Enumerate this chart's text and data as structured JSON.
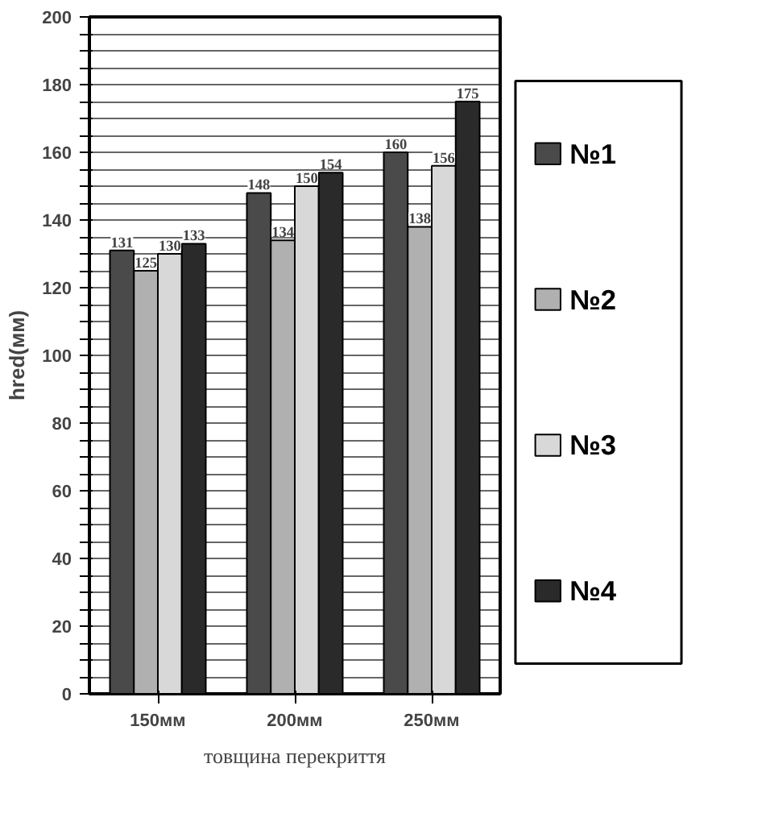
{
  "chart_data": {
    "type": "bar",
    "xlabel": "товщина перекриття",
    "ylabel": "hred(мм)",
    "categories": [
      "150мм",
      "200мм",
      "250мм"
    ],
    "series": [
      {
        "name": "№1",
        "color": "#4a4a4a",
        "values": [
          131,
          148,
          160
        ]
      },
      {
        "name": "№2",
        "color": "#b0b0b0",
        "values": [
          125,
          134,
          138
        ]
      },
      {
        "name": "№3",
        "color": "#d8d8d8",
        "values": [
          130,
          150,
          156
        ]
      },
      {
        "name": "№4",
        "color": "#2a2a2a",
        "values": [
          133,
          154,
          175
        ]
      }
    ],
    "ylim": [
      0,
      200
    ],
    "yticks": [
      0,
      {
        "value": 5,
        "label": null
      },
      {
        "value": 10,
        "label": null
      },
      {
        "value": 15,
        "label": null
      },
      20,
      {
        "value": 25,
        "label": null
      },
      {
        "value": 30,
        "label": null
      },
      {
        "value": 35,
        "label": null
      },
      40,
      {
        "value": 45,
        "label": null
      },
      {
        "value": 50,
        "label": null
      },
      {
        "value": 55,
        "label": null
      },
      60,
      {
        "value": 65,
        "label": null
      },
      {
        "value": 70,
        "label": null
      },
      {
        "value": 75,
        "label": null
      },
      80,
      {
        "value": 85,
        "label": null
      },
      {
        "value": 90,
        "label": null
      },
      {
        "value": 95,
        "label": null
      },
      100,
      {
        "value": 105,
        "label": null
      },
      {
        "value": 110,
        "label": null
      },
      {
        "value": 115,
        "label": null
      },
      120,
      {
        "value": 125,
        "label": null
      },
      {
        "value": 130,
        "label": null
      },
      {
        "value": 135,
        "label": null
      },
      140,
      {
        "value": 145,
        "label": null
      },
      {
        "value": 150,
        "label": null
      },
      {
        "value": 155,
        "label": null
      },
      160,
      {
        "value": 165,
        "label": null
      },
      {
        "value": 170,
        "label": null
      },
      {
        "value": 175,
        "label": null
      },
      180,
      {
        "value": 185,
        "label": null
      },
      {
        "value": 190,
        "label": null
      },
      {
        "value": 195,
        "label": null
      },
      200
    ],
    "grid": "y",
    "legend": "right",
    "data_labels": true
  }
}
